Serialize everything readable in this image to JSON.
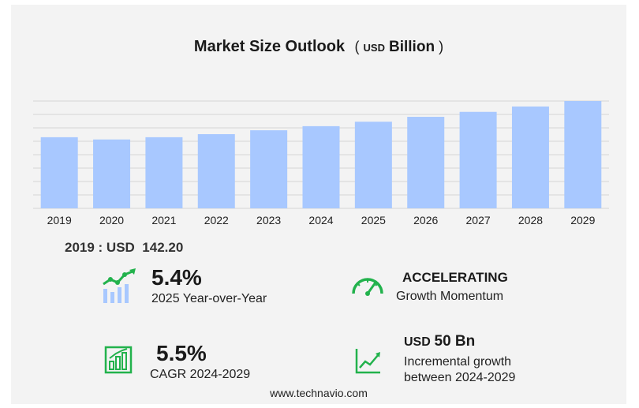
{
  "chart_data": {
    "type": "bar",
    "title": "Market Size Outlook",
    "unit_prefix": "USD",
    "unit_suffix": "Billion",
    "categories": [
      "2019",
      "2020",
      "2021",
      "2022",
      "2023",
      "2024",
      "2025",
      "2026",
      "2027",
      "2028",
      "2029"
    ],
    "values": [
      142.2,
      137.7,
      142.2,
      148.3,
      156.1,
      164.3,
      173.2,
      183.0,
      192.9,
      203.6,
      214.6
    ],
    "ylim": [
      0,
      214.6
    ],
    "grid": true,
    "bar_color": "#a8c8ff"
  },
  "base_year": {
    "label": "2019 : USD",
    "value": "142.20"
  },
  "kpis": {
    "yoy": {
      "value": "5.4%",
      "caption": "2025 Year-over-Year",
      "icon": "growth-chart-icon"
    },
    "momentum": {
      "value": "ACCELERATING",
      "caption": "Growth Momentum",
      "icon": "speedometer-icon"
    },
    "cagr": {
      "value": "5.5%",
      "caption": "CAGR 2024-2029",
      "icon": "bar-chart-icon"
    },
    "incremental": {
      "value_prefix": "USD",
      "value": "50 Bn",
      "caption_line1": "Incremental growth",
      "caption_line2": "between 2024-2029",
      "icon": "trend-line-icon"
    }
  },
  "colors": {
    "accent_green": "#22b24c",
    "bar": "#a8c8ff"
  },
  "footer": "www.technavio.com"
}
